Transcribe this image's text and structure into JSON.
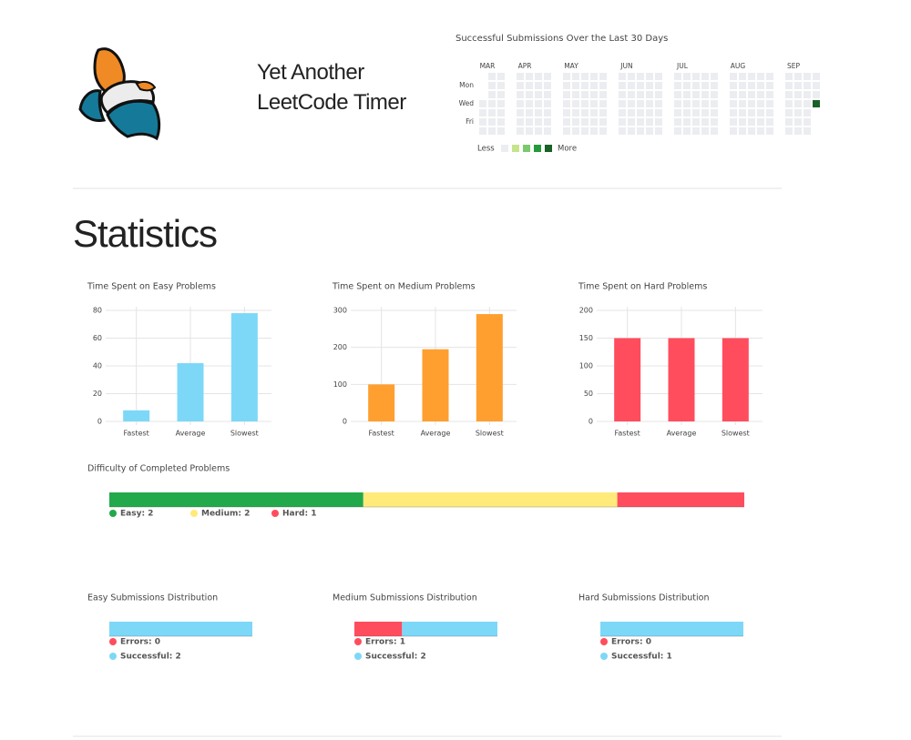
{
  "header": {
    "title": "Yet Another LeetCode Timer"
  },
  "heatmap": {
    "title": "Successful Submissions Over the Last 30 Days",
    "days": [
      null,
      "Mon",
      null,
      "Wed",
      null,
      "Fri",
      null
    ],
    "colors": [
      "#ebedf0",
      "#c6e48b",
      "#7bc96f",
      "#239a3b",
      "#196127"
    ],
    "legend": {
      "less": "Less",
      "more": "More"
    },
    "months": [
      {
        "label": "MAR",
        "weeks": [
          [
            null,
            null,
            null,
            0,
            0,
            0,
            0
          ],
          [
            0,
            0,
            0,
            0,
            0,
            0,
            0
          ],
          [
            0,
            0,
            0,
            0,
            0,
            0,
            0
          ]
        ]
      },
      {
        "label": "APR",
        "weeks": [
          [
            0,
            0,
            0,
            0,
            0,
            0,
            0
          ],
          [
            0,
            0,
            0,
            0,
            0,
            0,
            0
          ],
          [
            0,
            0,
            0,
            0,
            0,
            0,
            0
          ],
          [
            0,
            0,
            0,
            0,
            0,
            0,
            0
          ]
        ]
      },
      {
        "label": "MAY",
        "weeks": [
          [
            0,
            0,
            0,
            0,
            0,
            0,
            0
          ],
          [
            0,
            0,
            0,
            0,
            0,
            0,
            0
          ],
          [
            0,
            0,
            0,
            0,
            0,
            0,
            0
          ],
          [
            0,
            0,
            0,
            0,
            0,
            0,
            0
          ],
          [
            0,
            0,
            0,
            0,
            0,
            0,
            0
          ]
        ]
      },
      {
        "label": "JUN",
        "weeks": [
          [
            0,
            0,
            0,
            0,
            0,
            0,
            0
          ],
          [
            0,
            0,
            0,
            0,
            0,
            0,
            0
          ],
          [
            0,
            0,
            0,
            0,
            0,
            0,
            0
          ],
          [
            0,
            0,
            0,
            0,
            0,
            0,
            0
          ],
          [
            0,
            0,
            0,
            0,
            0,
            0,
            0
          ]
        ]
      },
      {
        "label": "JUL",
        "weeks": [
          [
            0,
            0,
            0,
            0,
            0,
            0,
            0
          ],
          [
            0,
            0,
            0,
            0,
            0,
            0,
            0
          ],
          [
            0,
            0,
            0,
            0,
            0,
            0,
            0
          ],
          [
            0,
            0,
            0,
            0,
            0,
            0,
            0
          ],
          [
            0,
            0,
            0,
            0,
            0,
            0,
            0
          ]
        ]
      },
      {
        "label": "AUG",
        "weeks": [
          [
            0,
            0,
            0,
            0,
            0,
            0,
            0
          ],
          [
            0,
            0,
            0,
            0,
            0,
            0,
            0
          ],
          [
            0,
            0,
            0,
            0,
            0,
            0,
            0
          ],
          [
            0,
            0,
            0,
            0,
            0,
            0,
            0
          ],
          [
            0,
            0,
            0,
            0,
            0,
            0,
            0
          ]
        ]
      },
      {
        "label": "SEP",
        "weeks": [
          [
            0,
            0,
            0,
            0,
            0,
            0,
            0
          ],
          [
            0,
            0,
            0,
            0,
            0,
            0,
            0
          ],
          [
            0,
            0,
            0,
            0,
            0,
            0,
            0
          ],
          [
            0,
            0,
            0,
            4,
            null,
            null,
            null
          ]
        ]
      }
    ]
  },
  "section_title": "Statistics",
  "chart_data": [
    {
      "type": "bar",
      "title": "Time Spent on Easy Problems",
      "categories": [
        "Fastest",
        "Average",
        "Slowest"
      ],
      "values": [
        8,
        42,
        78
      ],
      "color": "#7dd8f8",
      "ylim": [
        0,
        80
      ],
      "yticks": [
        0,
        20,
        40,
        60,
        80
      ],
      "grid": true
    },
    {
      "type": "bar",
      "title": "Time Spent on Medium Problems",
      "categories": [
        "Fastest",
        "Average",
        "Slowest"
      ],
      "values": [
        100,
        195,
        290
      ],
      "color": "#ff9f30",
      "ylim": [
        0,
        300
      ],
      "yticks": [
        0,
        100,
        200,
        300
      ],
      "grid": true
    },
    {
      "type": "bar",
      "title": "Time Spent on Hard Problems",
      "categories": [
        "Fastest",
        "Average",
        "Slowest"
      ],
      "values": [
        150,
        150,
        150
      ],
      "color": "#ff4d5e",
      "ylim": [
        0,
        200
      ],
      "yticks": [
        0,
        50,
        100,
        150,
        200
      ],
      "grid": true
    },
    {
      "type": "stacked_bar",
      "title": "Difficulty of Completed Problems",
      "legend": "horizontal",
      "series": [
        {
          "name": "Easy: 2",
          "color": "#22a94b",
          "values": [
            2
          ]
        },
        {
          "name": "Medium: 2",
          "color": "#ffea7a",
          "values": [
            2
          ]
        },
        {
          "name": "Hard: 1",
          "color": "#ff4d5e",
          "values": [
            1
          ]
        }
      ]
    },
    {
      "type": "stacked_bar",
      "title": "Easy Submissions Distribution",
      "legend": "vertical",
      "series": [
        {
          "name": "Errors: 0",
          "color": "#ff4d5e",
          "values": [
            0
          ]
        },
        {
          "name": "Successful: 2",
          "color": "#7dd8f8",
          "values": [
            2
          ]
        }
      ]
    },
    {
      "type": "stacked_bar",
      "title": "Medium Submissions Distribution",
      "legend": "vertical",
      "series": [
        {
          "name": "Errors: 1",
          "color": "#ff4d5e",
          "values": [
            1
          ]
        },
        {
          "name": "Successful: 2",
          "color": "#7dd8f8",
          "values": [
            2
          ]
        }
      ]
    },
    {
      "type": "stacked_bar",
      "title": "Hard Submissions Distribution",
      "legend": "vertical",
      "series": [
        {
          "name": "Errors: 0",
          "color": "#ff4d5e",
          "values": [
            0
          ]
        },
        {
          "name": "Successful: 1",
          "color": "#7dd8f8",
          "values": [
            1
          ]
        }
      ]
    }
  ]
}
